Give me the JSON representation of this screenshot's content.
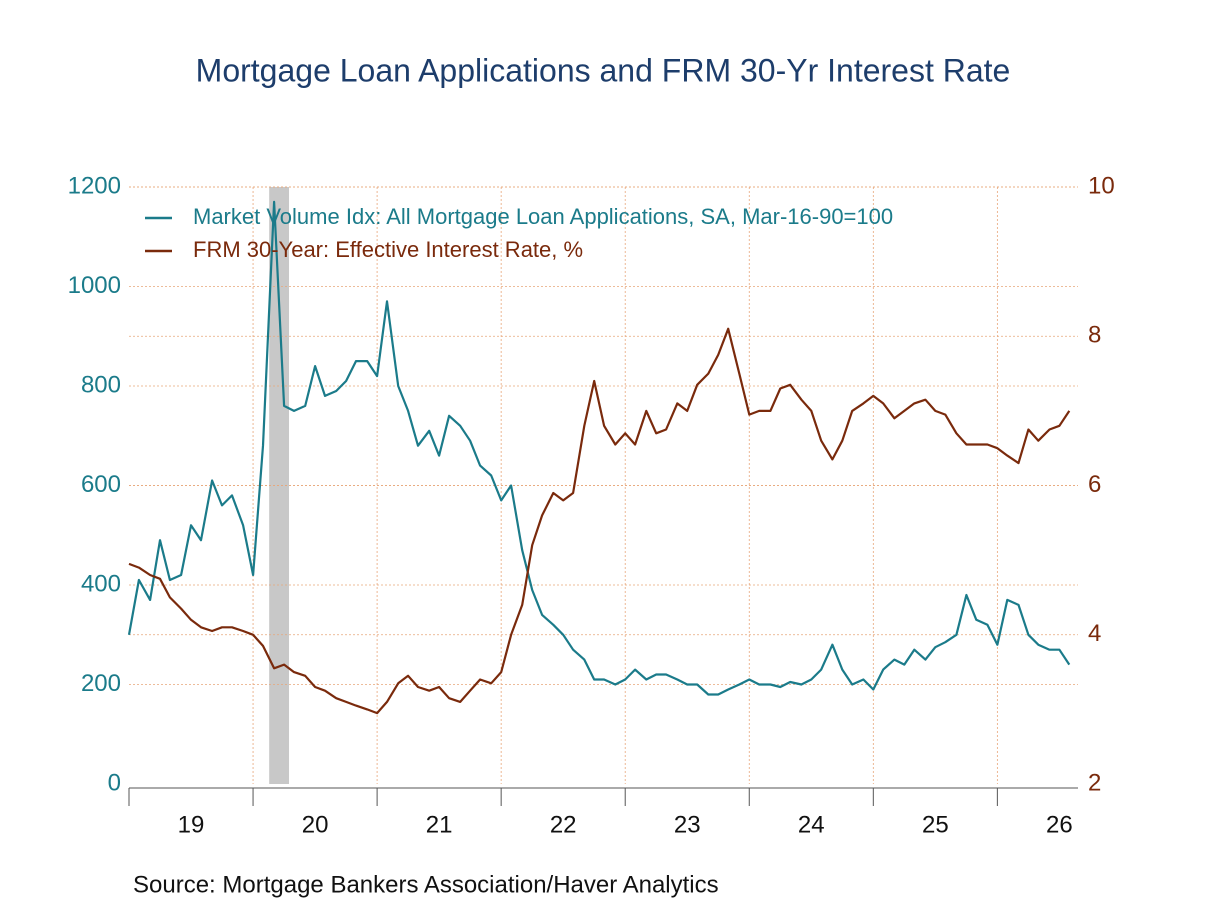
{
  "chart_data": {
    "type": "line",
    "title": "Mortgage Loan Applications and FRM 30-Yr Interest Rate",
    "source": "Source:  Mortgage Bankers Association/Haver Analytics",
    "x": [
      2019,
      2019.08,
      2019.17,
      2019.25,
      2019.33,
      2019.42,
      2019.5,
      2019.58,
      2019.67,
      2019.75,
      2019.83,
      2019.92,
      2020,
      2020.08,
      2020.17,
      2020.25,
      2020.33,
      2020.42,
      2020.5,
      2020.58,
      2020.67,
      2020.75,
      2020.83,
      2020.92,
      2021,
      2021.08,
      2021.17,
      2021.25,
      2021.33,
      2021.42,
      2021.5,
      2021.58,
      2021.67,
      2021.75,
      2021.83,
      2021.92,
      2022,
      2022.08,
      2022.17,
      2022.25,
      2022.33,
      2022.42,
      2022.5,
      2022.58,
      2022.67,
      2022.75,
      2022.83,
      2022.92,
      2023,
      2023.08,
      2023.17,
      2023.25,
      2023.33,
      2023.42,
      2023.5,
      2023.58,
      2023.67,
      2023.75,
      2023.83,
      2023.92,
      2024,
      2024.08,
      2024.17,
      2024.25,
      2024.33,
      2024.42,
      2024.5,
      2024.58,
      2024.67,
      2024.75,
      2024.83,
      2024.92,
      2025,
      2025.08,
      2025.17,
      2025.25,
      2025.33,
      2025.42,
      2025.5,
      2025.58,
      2025.67,
      2025.75,
      2025.83,
      2025.92,
      2026,
      2026.08,
      2026.17,
      2026.25,
      2026.33,
      2026.42,
      2026.5,
      2026.58
    ],
    "series": [
      {
        "name": "Market Volume Idx: All Mortgage Loan Applications, SA, Mar-16-90=100",
        "color": "#1b7b8a",
        "axis": "y",
        "values": [
          300,
          410,
          370,
          490,
          410,
          420,
          520,
          490,
          610,
          560,
          580,
          520,
          420,
          680,
          1170,
          760,
          750,
          760,
          840,
          780,
          790,
          810,
          850,
          850,
          820,
          970,
          800,
          750,
          680,
          710,
          660,
          740,
          720,
          690,
          640,
          620,
          570,
          600,
          470,
          390,
          340,
          320,
          300,
          270,
          250,
          210,
          210,
          200,
          210,
          230,
          210,
          220,
          220,
          210,
          200,
          200,
          180,
          180,
          190,
          200,
          210,
          200,
          200,
          195,
          205,
          200,
          210,
          230,
          280,
          230,
          200,
          210,
          190,
          230,
          250,
          240,
          270,
          250,
          275,
          285,
          300,
          380,
          330,
          320,
          280,
          370,
          360,
          300,
          280,
          270,
          270,
          240
        ]
      },
      {
        "name": "FRM 30-Year: Effective Interest Rate, %",
        "color": "#7a2a0c",
        "axis": "y2",
        "values": [
          4.95,
          4.9,
          4.8,
          4.75,
          4.5,
          4.35,
          4.2,
          4.1,
          4.05,
          4.1,
          4.1,
          4.05,
          4.0,
          3.85,
          3.55,
          3.6,
          3.5,
          3.45,
          3.3,
          3.25,
          3.15,
          3.1,
          3.05,
          3.0,
          2.95,
          3.1,
          3.35,
          3.45,
          3.3,
          3.25,
          3.3,
          3.15,
          3.1,
          3.25,
          3.4,
          3.35,
          3.5,
          4.0,
          4.4,
          5.2,
          5.6,
          5.9,
          5.8,
          5.9,
          6.8,
          7.4,
          6.8,
          6.55,
          6.7,
          6.55,
          7.0,
          6.7,
          6.75,
          7.1,
          7.0,
          7.35,
          7.5,
          7.75,
          8.1,
          7.5,
          6.95,
          7.0,
          7.0,
          7.3,
          7.35,
          7.15,
          7.0,
          6.6,
          6.35,
          6.6,
          7.0,
          7.1,
          7.2,
          7.1,
          6.9,
          7.0,
          7.1,
          7.15,
          7.0,
          6.95,
          6.7,
          6.55,
          6.55,
          6.55,
          6.5,
          6.4,
          6.3,
          6.75,
          6.6,
          6.75,
          6.8,
          7.0
        ]
      }
    ],
    "xlim": [
      2019,
      2026.65
    ],
    "xticks": [
      {
        "value": 2019,
        "label": "19"
      },
      {
        "value": 2020,
        "label": "20"
      },
      {
        "value": 2021,
        "label": "21"
      },
      {
        "value": 2022,
        "label": "22"
      },
      {
        "value": 2023,
        "label": "23"
      },
      {
        "value": 2024,
        "label": "24"
      },
      {
        "value": 2025,
        "label": "25"
      },
      {
        "value": 2026,
        "label": "26"
      }
    ],
    "ylim": [
      0,
      1200
    ],
    "yticks": [
      0,
      200,
      400,
      600,
      800,
      1000,
      1200
    ],
    "y2lim": [
      2,
      10
    ],
    "y2ticks": [
      2,
      4,
      6,
      8,
      10
    ],
    "shaded_periods": [
      [
        2020.13,
        2020.29
      ]
    ],
    "shade_color": "#c8c8c8",
    "grid": true
  }
}
